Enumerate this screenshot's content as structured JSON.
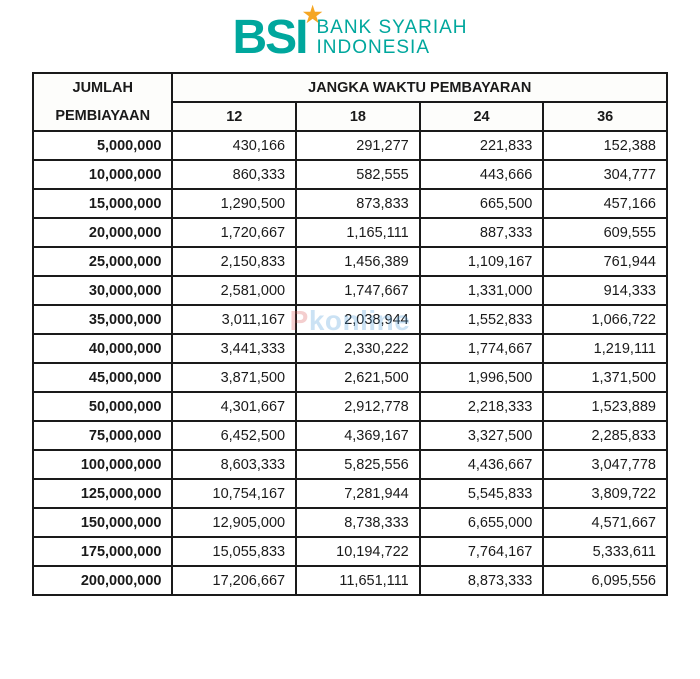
{
  "brand": {
    "mark": "BSI",
    "line1": "BANK SYARIAH",
    "line2": "INDONESIA",
    "brand_color": "#00a79d",
    "accent_color": "#f5a623"
  },
  "watermark": {
    "prefix": "P",
    "rest": "konline"
  },
  "table": {
    "type": "table",
    "background_color": "#ffffff",
    "border_color": "#1a1a1a",
    "header_font_weight": 700,
    "amount_font_weight": 700,
    "value_font_weight": 400,
    "font_size_pt": 11,
    "header": {
      "jumlah_top": "JUMLAH",
      "jumlah_bottom": "PEMBIAYAAN",
      "jangka": "JANGKA WAKTU PEMBAYARAN",
      "periods": [
        "12",
        "18",
        "24",
        "36"
      ]
    },
    "column_widths_pct": [
      22,
      19.5,
      19.5,
      19.5,
      19.5
    ],
    "rows": [
      {
        "amount": "5,000,000",
        "vals": [
          "430,166",
          "291,277",
          "221,833",
          "152,388"
        ]
      },
      {
        "amount": "10,000,000",
        "vals": [
          "860,333",
          "582,555",
          "443,666",
          "304,777"
        ]
      },
      {
        "amount": "15,000,000",
        "vals": [
          "1,290,500",
          "873,833",
          "665,500",
          "457,166"
        ]
      },
      {
        "amount": "20,000,000",
        "vals": [
          "1,720,667",
          "1,165,111",
          "887,333",
          "609,555"
        ]
      },
      {
        "amount": "25,000,000",
        "vals": [
          "2,150,833",
          "1,456,389",
          "1,109,167",
          "761,944"
        ]
      },
      {
        "amount": "30,000,000",
        "vals": [
          "2,581,000",
          "1,747,667",
          "1,331,000",
          "914,333"
        ]
      },
      {
        "amount": "35,000,000",
        "vals": [
          "3,011,167",
          "2,038,944",
          "1,552,833",
          "1,066,722"
        ]
      },
      {
        "amount": "40,000,000",
        "vals": [
          "3,441,333",
          "2,330,222",
          "1,774,667",
          "1,219,111"
        ]
      },
      {
        "amount": "45,000,000",
        "vals": [
          "3,871,500",
          "2,621,500",
          "1,996,500",
          "1,371,500"
        ]
      },
      {
        "amount": "50,000,000",
        "vals": [
          "4,301,667",
          "2,912,778",
          "2,218,333",
          "1,523,889"
        ]
      },
      {
        "amount": "75,000,000",
        "vals": [
          "6,452,500",
          "4,369,167",
          "3,327,500",
          "2,285,833"
        ]
      },
      {
        "amount": "100,000,000",
        "vals": [
          "8,603,333",
          "5,825,556",
          "4,436,667",
          "3,047,778"
        ]
      },
      {
        "amount": "125,000,000",
        "vals": [
          "10,754,167",
          "7,281,944",
          "5,545,833",
          "3,809,722"
        ]
      },
      {
        "amount": "150,000,000",
        "vals": [
          "12,905,000",
          "8,738,333",
          "6,655,000",
          "4,571,667"
        ]
      },
      {
        "amount": "175,000,000",
        "vals": [
          "15,055,833",
          "10,194,722",
          "7,764,167",
          "5,333,611"
        ]
      },
      {
        "amount": "200,000,000",
        "vals": [
          "17,206,667",
          "11,651,111",
          "8,873,333",
          "6,095,556"
        ]
      }
    ]
  }
}
